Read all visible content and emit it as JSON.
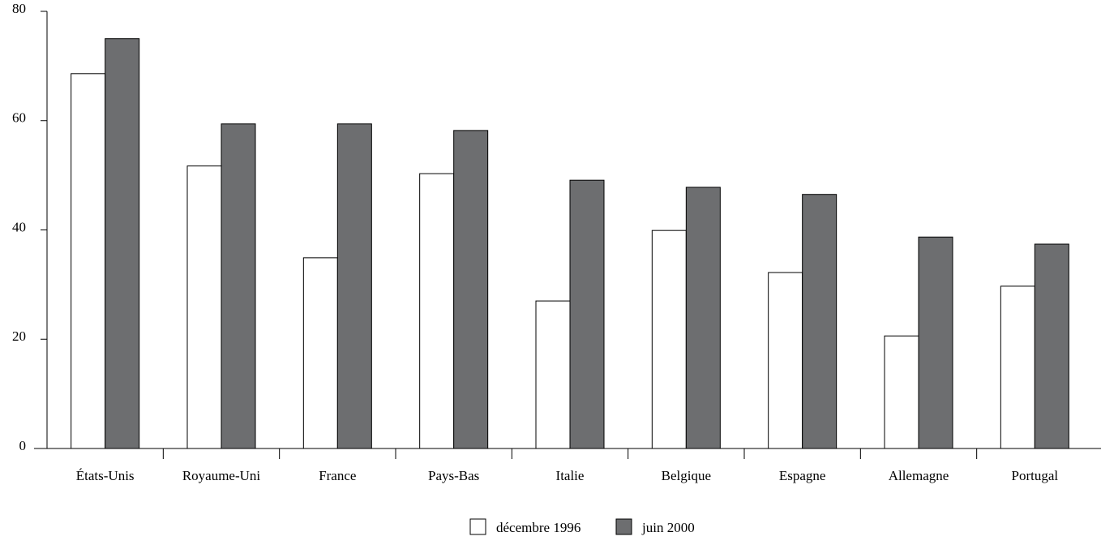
{
  "chart_data": {
    "type": "bar",
    "categories": [
      "États-Unis",
      "Royaume-Uni",
      "France",
      "Pays-Bas",
      "Italie",
      "Belgique",
      "Espagne",
      "Allemagne",
      "Portugal"
    ],
    "series": [
      {
        "name": "décembre 1996",
        "color": "#ffffff",
        "values": [
          68.6,
          51.7,
          34.9,
          50.3,
          27.0,
          39.9,
          32.2,
          20.6,
          29.7
        ]
      },
      {
        "name": "juin 2000",
        "color": "#6d6e70",
        "values": [
          75.0,
          59.4,
          59.4,
          58.2,
          49.1,
          47.8,
          46.5,
          38.7,
          37.4
        ]
      }
    ],
    "ylim": [
      0,
      80
    ],
    "yticks": [
      0,
      20,
      40,
      60,
      80
    ],
    "grid": false,
    "legend": "bottom"
  }
}
